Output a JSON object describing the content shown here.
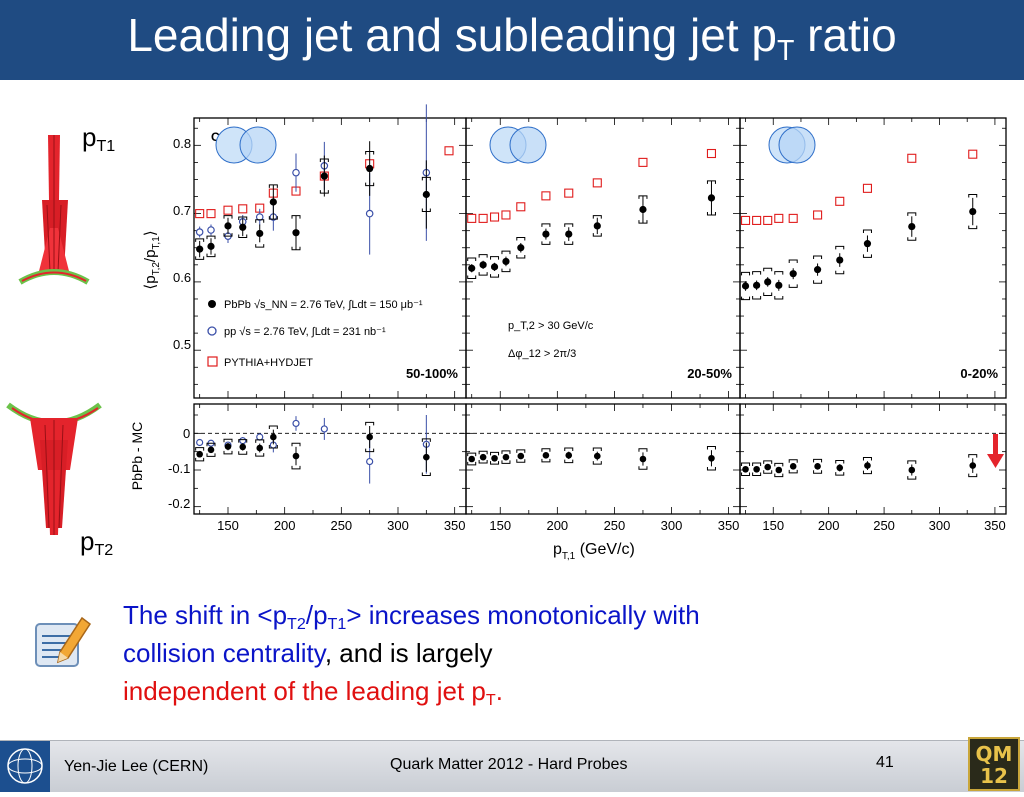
{
  "slide": {
    "title_main": "Leading jet and subleading jet p",
    "title_sub": "T",
    "title_end": " ratio",
    "pt1_label": "p",
    "pt1_sub": "T1",
    "pt2_label": "p",
    "pt2_sub": "T2"
  },
  "conclusion": {
    "line1_a": "The shift in <p",
    "line1_sub1": "T2",
    "line1_b": "/p",
    "line1_sub2": "T1",
    "line1_c": "> increases monotonically with",
    "line2_blue": "collision centrality",
    "line2_black": ", and is largely",
    "line3_red": "independent of the leading jet p",
    "line3_sub": "T",
    "line3_end": "."
  },
  "footer": {
    "author": "Yen-Jie Lee (CERN)",
    "conference": "Quark Matter 2012 - Hard Probes",
    "page": "41",
    "logo_text_1": "QM",
    "logo_text_2": "12"
  },
  "colors": {
    "title_bar": "#1f4b82",
    "pbpb": "#000000",
    "pp": "#3a4fa8",
    "pythia": "#e01c1c",
    "highlight_text": "#0a14c8",
    "red_text": "#e01010",
    "jet_red": "#e4242c",
    "jet_green": "#6cc24a"
  },
  "chart_data": {
    "type": "scatter",
    "cms_label": "CMS",
    "ylabel_top": "⟨p_T,2/p_T,1⟩",
    "ylabel_bottom": "PbPb - MC",
    "xlabel": "p_T,1 (GeV/c)",
    "xlim": [
      120,
      360
    ],
    "ylim_top": [
      0.43,
      0.84
    ],
    "ylim_bottom": [
      -0.22,
      0.08
    ],
    "yticks_top": [
      "0.5",
      "0.6",
      "0.7",
      "0.8"
    ],
    "yticks_bottom": [
      "-0.2",
      "-0.1",
      "0"
    ],
    "xticks": [
      "150",
      "200",
      "250",
      "300",
      "350"
    ],
    "legend": [
      "PbPb √s_NN = 2.76 TeV, ∫Ldt = 150 μb⁻¹",
      "pp √s = 2.76 TeV, ∫Ldt = 231 nb⁻¹",
      "PYTHIA+HYDJET"
    ],
    "cuts": [
      "p_T,2 > 30 GeV/c",
      "Δφ_12 > 2π/3"
    ],
    "panels": [
      {
        "label": "50-100%",
        "pbpb": {
          "x": [
            125,
            135,
            150,
            163,
            178,
            190,
            210,
            235,
            275,
            325
          ],
          "y": [
            0.648,
            0.652,
            0.682,
            0.68,
            0.671,
            0.717,
            0.672,
            0.755,
            0.766,
            0.728
          ],
          "err": [
            0.012,
            0.012,
            0.012,
            0.013,
            0.013,
            0.025,
            0.025,
            0.03,
            0.04,
            0.05
          ],
          "sys": [
            0.015,
            0.015,
            0.015,
            0.015,
            0.02,
            0.025,
            0.025,
            0.025,
            0.025,
            0.025
          ]
        },
        "pp": {
          "x": [
            125,
            135,
            150,
            163,
            178,
            190,
            210,
            235,
            275,
            325
          ],
          "y": [
            0.673,
            0.676,
            0.667,
            0.688,
            0.695,
            0.695,
            0.76,
            0.77,
            0.7,
            0.76
          ],
          "err": [
            0.008,
            0.008,
            0.01,
            0.01,
            0.012,
            0.02,
            0.028,
            0.035,
            0.06,
            0.1
          ]
        },
        "mc": {
          "x": [
            125,
            135,
            150,
            163,
            178,
            190,
            210,
            235,
            275,
            345
          ],
          "y": [
            0.7,
            0.7,
            0.705,
            0.707,
            0.708,
            0.73,
            0.733,
            0.755,
            0.773,
            0.792
          ]
        },
        "diff": {
          "pbpb": {
            "x": [
              125,
              135,
              150,
              163,
              178,
              190,
              210,
              275,
              325
            ],
            "y": [
              -0.057,
              -0.045,
              -0.036,
              -0.037,
              -0.04,
              -0.01,
              -0.062,
              -0.01,
              -0.065
            ],
            "err": [
              0.008,
              0.008,
              0.01,
              0.01,
              0.012,
              0.02,
              0.025,
              0.03,
              0.04
            ]
          },
          "pp": {
            "x": [
              125,
              135,
              150,
              163,
              178,
              190,
              210,
              235,
              275,
              325
            ],
            "y": [
              -0.025,
              -0.027,
              -0.032,
              -0.02,
              -0.01,
              -0.032,
              0.027,
              0.012,
              -0.077,
              -0.03
            ],
            "err": [
              0.008,
              0.008,
              0.008,
              0.01,
              0.01,
              0.02,
              0.02,
              0.03,
              0.06,
              0.08
            ]
          }
        }
      },
      {
        "label": "20-50%",
        "pbpb": {
          "x": [
            125,
            135,
            145,
            155,
            168,
            190,
            210,
            235,
            275,
            335
          ],
          "y": [
            0.62,
            0.625,
            0.622,
            0.63,
            0.65,
            0.67,
            0.67,
            0.682,
            0.706,
            0.723
          ],
          "err": [
            0.006,
            0.006,
            0.006,
            0.007,
            0.007,
            0.008,
            0.01,
            0.012,
            0.02,
            0.025
          ],
          "sys": [
            0.015,
            0.015,
            0.015,
            0.015,
            0.015,
            0.015,
            0.015,
            0.015,
            0.02,
            0.025
          ]
        },
        "mc": {
          "x": [
            125,
            135,
            145,
            155,
            168,
            190,
            210,
            235,
            275,
            335
          ],
          "y": [
            0.693,
            0.693,
            0.695,
            0.698,
            0.71,
            0.726,
            0.73,
            0.745,
            0.775,
            0.788
          ]
        },
        "diff": {
          "pbpb": {
            "x": [
              125,
              135,
              145,
              155,
              168,
              190,
              210,
              235,
              275,
              335
            ],
            "y": [
              -0.07,
              -0.065,
              -0.068,
              -0.065,
              -0.062,
              -0.06,
              -0.06,
              -0.062,
              -0.07,
              -0.068
            ],
            "err": [
              0.006,
              0.006,
              0.006,
              0.007,
              0.007,
              0.008,
              0.01,
              0.012,
              0.018,
              0.022
            ]
          }
        }
      },
      {
        "label": "0-20%",
        "pbpb": {
          "x": [
            125,
            135,
            145,
            155,
            168,
            190,
            210,
            235,
            275,
            330
          ],
          "y": [
            0.594,
            0.595,
            0.6,
            0.595,
            0.612,
            0.618,
            0.632,
            0.656,
            0.681,
            0.703
          ],
          "err": [
            0.007,
            0.007,
            0.007,
            0.008,
            0.008,
            0.009,
            0.01,
            0.012,
            0.015,
            0.02
          ],
          "sys": [
            0.02,
            0.02,
            0.02,
            0.02,
            0.02,
            0.02,
            0.02,
            0.02,
            0.02,
            0.025
          ]
        },
        "mc": {
          "x": [
            125,
            135,
            145,
            155,
            168,
            190,
            210,
            235,
            275,
            330
          ],
          "y": [
            0.69,
            0.69,
            0.69,
            0.693,
            0.693,
            0.698,
            0.718,
            0.737,
            0.781,
            0.787
          ]
        },
        "diff": {
          "pbpb": {
            "x": [
              125,
              135,
              145,
              155,
              168,
              190,
              210,
              235,
              275,
              330
            ],
            "y": [
              -0.098,
              -0.098,
              -0.092,
              -0.1,
              -0.09,
              -0.09,
              -0.094,
              -0.088,
              -0.1,
              -0.088
            ],
            "err": [
              0.007,
              0.007,
              0.007,
              0.008,
              0.008,
              0.009,
              0.01,
              0.012,
              0.015,
              0.02
            ]
          }
        }
      }
    ]
  }
}
